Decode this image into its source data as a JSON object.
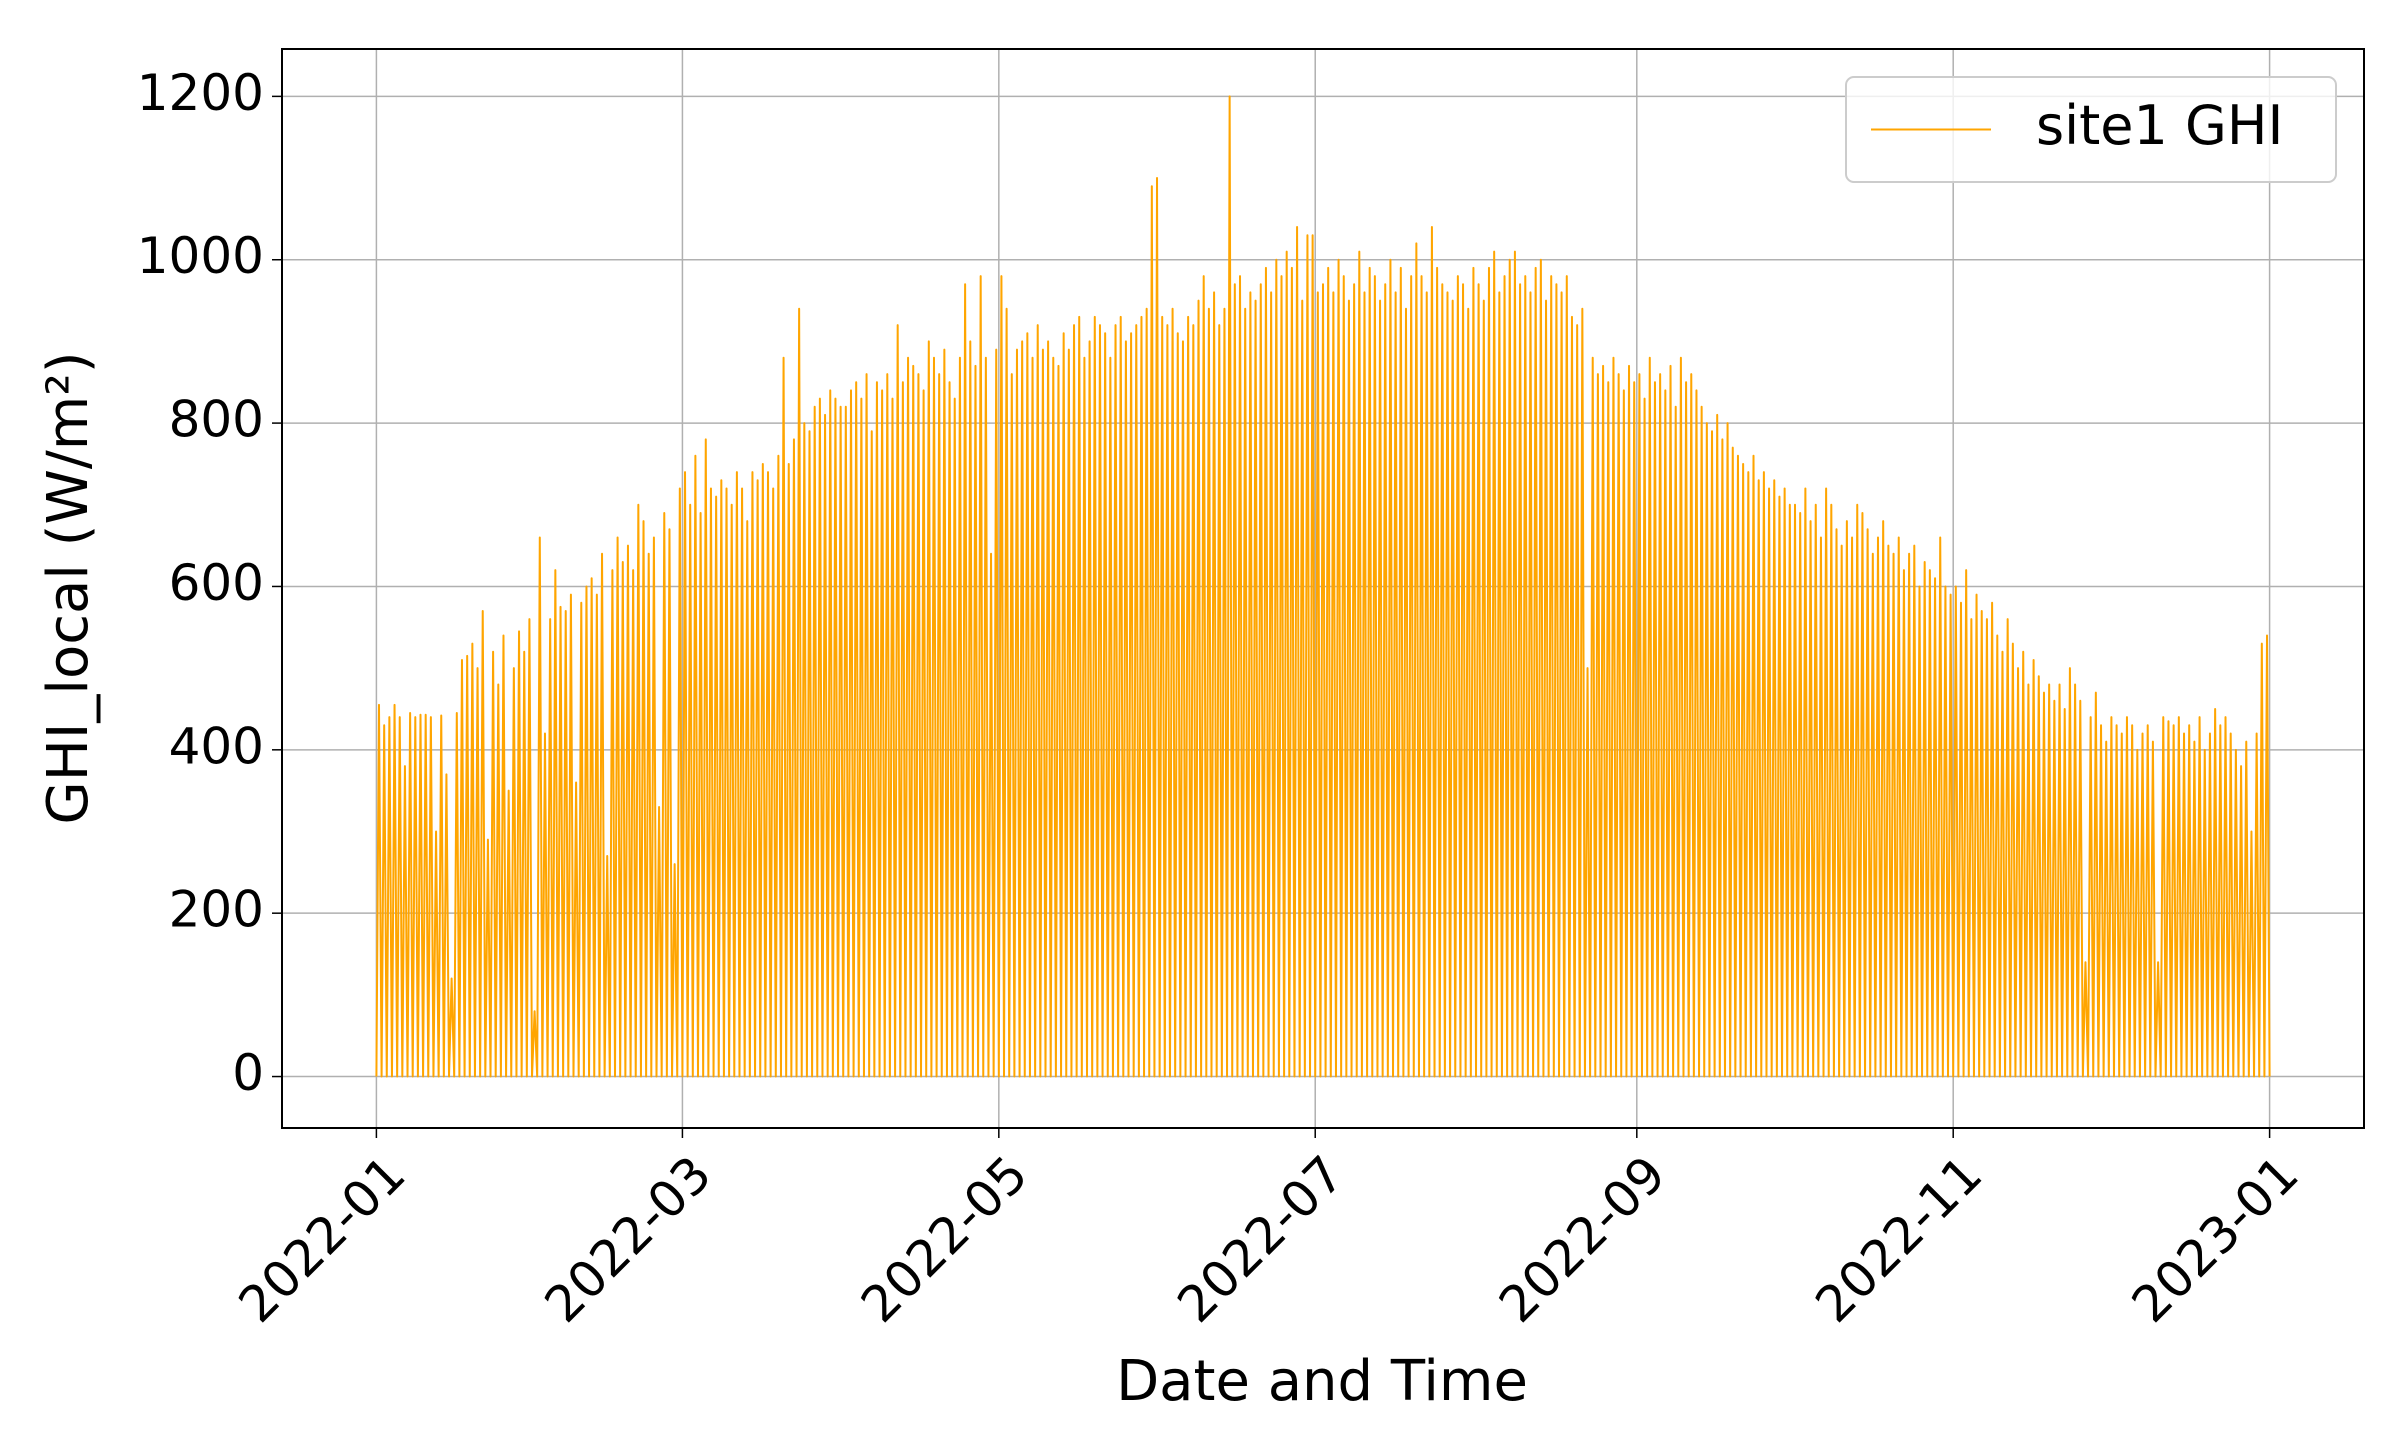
{
  "chart_data": {
    "type": "line",
    "xlabel": "Date and Time",
    "ylabel": "GHI_local (W/m²)",
    "xlim": [
      -18.2,
      383.2
    ],
    "ylim": [
      -63,
      1258
    ],
    "xticks": [
      {
        "value": 0,
        "label": "2022-01"
      },
      {
        "value": 59,
        "label": "2022-03"
      },
      {
        "value": 120,
        "label": "2022-05"
      },
      {
        "value": 181,
        "label": "2022-07"
      },
      {
        "value": 243,
        "label": "2022-09"
      },
      {
        "value": 304,
        "label": "2022-11"
      },
      {
        "value": 365,
        "label": "2023-01"
      }
    ],
    "yticks": [
      0,
      200,
      400,
      600,
      800,
      1000,
      1200
    ],
    "grid": true,
    "legend": "upper right",
    "x": [
      0,
      0.5,
      1,
      1.5,
      2,
      2.5,
      3,
      3.5,
      4,
      4.5,
      5,
      5.5,
      6,
      6.5,
      7,
      7.5,
      8,
      8.5,
      9,
      9.5,
      10,
      10.5,
      11,
      11.5,
      12,
      12.5,
      13,
      13.5,
      14,
      14.5,
      15,
      15.5,
      16,
      16.5,
      17,
      17.5,
      18,
      18.5,
      19,
      19.5,
      20,
      20.5,
      21,
      21.5,
      22,
      22.5,
      23,
      23.5,
      24,
      24.5,
      25,
      25.5,
      26,
      26.5,
      27,
      27.5,
      28,
      28.5,
      29,
      29.5,
      30,
      30.5,
      31,
      31.5,
      32,
      32.5,
      33,
      33.5,
      34,
      34.5,
      35,
      35.5,
      36,
      36.5,
      37,
      37.5,
      38,
      38.5,
      39,
      39.5,
      40,
      40.5,
      41,
      41.5,
      42,
      42.5,
      43,
      43.5,
      44,
      44.5,
      45,
      45.5,
      46,
      46.5,
      47,
      47.5,
      48,
      48.5,
      49,
      49.5,
      50,
      50.5,
      51,
      51.5,
      52,
      52.5,
      53,
      53.5,
      54,
      54.5,
      55,
      55.5,
      56,
      56.5,
      57,
      57.5,
      58,
      58.5,
      59,
      59.5,
      60,
      60.5,
      61,
      61.5,
      62,
      62.5,
      63,
      63.5,
      64,
      64.5,
      65,
      65.5,
      66,
      66.5,
      67,
      67.5,
      68,
      68.5,
      69,
      69.5,
      70,
      70.5,
      71,
      71.5,
      72,
      72.5,
      73,
      73.5,
      74,
      74.5,
      75,
      75.5,
      76,
      76.5,
      77,
      77.5,
      78,
      78.5,
      79,
      79.5,
      80,
      80.5,
      81,
      81.5,
      82,
      82.5,
      83,
      83.5,
      84,
      84.5,
      85,
      85.5,
      86,
      86.5,
      87,
      87.5,
      88,
      88.5,
      89,
      89.5,
      90,
      90.5,
      91,
      91.5,
      92,
      92.5,
      93,
      93.5,
      94,
      94.5,
      95,
      95.5,
      96,
      96.5,
      97,
      97.5,
      98,
      98.5,
      99,
      99.5,
      100,
      100.5,
      101,
      101.5,
      102,
      102.5,
      103,
      103.5,
      104,
      104.5,
      105,
      105.5,
      106,
      106.5,
      107,
      107.5,
      108,
      108.5,
      109,
      109.5,
      110,
      110.5,
      111,
      111.5,
      112,
      112.5,
      113,
      113.5,
      114,
      114.5,
      115,
      115.5,
      116,
      116.5,
      117,
      117.5,
      118,
      118.5,
      119,
      119.5,
      120,
      120.5,
      121,
      121.5,
      122,
      122.5,
      123,
      123.5,
      124,
      124.5,
      125,
      125.5,
      126,
      126.5,
      127,
      127.5,
      128,
      128.5,
      129,
      129.5,
      130,
      130.5,
      131,
      131.5,
      132,
      132.5,
      133,
      133.5,
      134,
      134.5,
      135,
      135.5,
      136,
      136.5,
      137,
      137.5,
      138,
      138.5,
      139,
      139.5,
      140,
      140.5,
      141,
      141.5,
      142,
      142.5,
      143,
      143.5,
      144,
      144.5,
      145,
      145.5,
      146,
      146.5,
      147,
      147.5,
      148,
      148.5,
      149,
      149.5,
      150,
      150.5,
      151,
      151.5,
      152,
      152.5,
      153,
      153.5,
      154,
      154.5,
      155,
      155.5,
      156,
      156.5,
      157,
      157.5,
      158,
      158.5,
      159,
      159.5,
      160,
      160.5,
      161,
      161.5,
      162,
      162.5,
      163,
      163.5,
      164,
      164.5,
      165,
      165.5,
      166,
      166.5,
      167,
      167.5,
      168,
      168.5,
      169,
      169.5,
      170,
      170.5,
      171,
      171.5,
      172,
      172.5,
      173,
      173.5,
      174,
      174.5,
      175,
      175.5,
      176,
      176.5,
      177,
      177.5,
      178,
      178.5,
      179,
      179.5,
      180,
      180.5,
      181,
      181.5,
      182,
      182.5,
      183,
      183.5,
      184,
      184.5,
      185,
      185.5,
      186,
      186.5,
      187,
      187.5,
      188,
      188.5,
      189,
      189.5,
      190,
      190.5,
      191,
      191.5,
      192,
      192.5,
      193,
      193.5,
      194,
      194.5,
      195,
      195.5,
      196,
      196.5,
      197,
      197.5,
      198,
      198.5,
      199,
      199.5,
      200,
      200.5,
      201,
      201.5,
      202,
      202.5,
      203,
      203.5,
      204,
      204.5,
      205,
      205.5,
      206,
      206.5,
      207,
      207.5,
      208,
      208.5,
      209,
      209.5,
      210,
      210.5,
      211,
      211.5,
      212,
      212.5,
      213,
      213.5,
      214,
      214.5,
      215,
      215.5,
      216,
      216.5,
      217,
      217.5,
      218,
      218.5,
      219,
      219.5,
      220,
      220.5,
      221,
      221.5,
      222,
      222.5,
      223,
      223.5,
      224,
      224.5,
      225,
      225.5,
      226,
      226.5,
      227,
      227.5,
      228,
      228.5,
      229,
      229.5,
      230,
      230.5,
      231,
      231.5,
      232,
      232.5,
      233,
      233.5,
      234,
      234.5,
      235,
      235.5,
      236,
      236.5,
      237,
      237.5,
      238,
      238.5,
      239,
      239.5,
      240,
      240.5,
      241,
      241.5,
      242,
      242.5,
      243,
      243.5,
      244,
      244.5,
      245,
      245.5,
      246,
      246.5,
      247,
      247.5,
      248,
      248.5,
      249,
      249.5,
      250,
      250.5,
      251,
      251.5,
      252,
      252.5,
      253,
      253.5,
      254,
      254.5,
      255,
      255.5,
      256,
      256.5,
      257,
      257.5,
      258,
      258.5,
      259,
      259.5,
      260,
      260.5,
      261,
      261.5,
      262,
      262.5,
      263,
      263.5,
      264,
      264.5,
      265,
      265.5,
      266,
      266.5,
      267,
      267.5,
      268,
      268.5,
      269,
      269.5,
      270,
      270.5,
      271,
      271.5,
      272,
      272.5,
      273,
      273.5,
      274,
      274.5,
      275,
      275.5,
      276,
      276.5,
      277,
      277.5,
      278,
      278.5,
      279,
      279.5,
      280,
      280.5,
      281,
      281.5,
      282,
      282.5,
      283,
      283.5,
      284,
      284.5,
      285,
      285.5,
      286,
      286.5,
      287,
      287.5,
      288,
      288.5,
      289,
      289.5,
      290,
      290.5,
      291,
      291.5,
      292,
      292.5,
      293,
      293.5,
      294,
      294.5,
      295,
      295.5,
      296,
      296.5,
      297,
      297.5,
      298,
      298.5,
      299,
      299.5,
      300,
      300.5,
      301,
      301.5,
      302,
      302.5,
      303,
      303.5,
      304,
      304.5,
      305,
      305.5,
      306,
      306.5,
      307,
      307.5,
      308,
      308.5,
      309,
      309.5,
      310,
      310.5,
      311,
      311.5,
      312,
      312.5,
      313,
      313.5,
      314,
      314.5,
      315,
      315.5,
      316,
      316.5,
      317,
      317.5,
      318,
      318.5,
      319,
      319.5,
      320,
      320.5,
      321,
      321.5,
      322,
      322.5,
      323,
      323.5,
      324,
      324.5,
      325,
      325.5,
      326,
      326.5,
      327,
      327.5,
      328,
      328.5,
      329,
      329.5,
      330,
      330.5,
      331,
      331.5,
      332,
      332.5,
      333,
      333.5,
      334,
      334.5,
      335,
      335.5,
      336,
      336.5,
      337,
      337.5,
      338,
      338.5,
      339,
      339.5,
      340,
      340.5,
      341,
      341.5,
      342,
      342.5,
      343,
      343.5,
      344,
      344.5,
      345,
      345.5,
      346,
      346.5,
      347,
      347.5,
      348,
      348.5,
      349,
      349.5,
      350,
      350.5,
      351,
      351.5,
      352,
      352.5,
      353,
      353.5,
      354,
      354.5,
      355,
      355.5,
      356,
      356.5,
      357,
      357.5,
      358,
      358.5,
      359,
      359.5,
      360,
      360.5,
      361,
      361.5,
      362,
      362.5,
      363,
      363.5,
      364,
      364.5,
      365
    ],
    "series": [
      {
        "name": "site1 GHI",
        "color": "#FFA500",
        "values": [
          0,
          455,
          0,
          430,
          0,
          440,
          0,
          455,
          0,
          440,
          0,
          380,
          0,
          445,
          0,
          440,
          0,
          443,
          0,
          443,
          0,
          440,
          0,
          300,
          0,
          442,
          0,
          370,
          0,
          120,
          0,
          445,
          0,
          510,
          0,
          515,
          0,
          530,
          0,
          500,
          0,
          570,
          0,
          290,
          0,
          520,
          0,
          480,
          0,
          540,
          0,
          350,
          0,
          500,
          0,
          545,
          0,
          520,
          0,
          560,
          0,
          80,
          0,
          660,
          0,
          420,
          0,
          560,
          0,
          620,
          0,
          575,
          0,
          570,
          0,
          590,
          0,
          360,
          0,
          580,
          0,
          600,
          0,
          610,
          0,
          590,
          0,
          640,
          0,
          270,
          0,
          620,
          0,
          660,
          0,
          630,
          0,
          650,
          0,
          620,
          0,
          700,
          0,
          680,
          0,
          640,
          0,
          660,
          0,
          330,
          0,
          690,
          0,
          670,
          0,
          260,
          0,
          720,
          0,
          740,
          0,
          700,
          0,
          760,
          0,
          690,
          0,
          780,
          0,
          720,
          0,
          710,
          0,
          730,
          0,
          720,
          0,
          700,
          0,
          740,
          0,
          720,
          0,
          680,
          0,
          740,
          0,
          730,
          0,
          750,
          0,
          740,
          0,
          720,
          0,
          760,
          0,
          880,
          0,
          750,
          0,
          780,
          0,
          940,
          0,
          800,
          0,
          790,
          0,
          820,
          0,
          830,
          0,
          810,
          0,
          840,
          0,
          830,
          0,
          820,
          0,
          820,
          0,
          840,
          0,
          850,
          0,
          830,
          0,
          860,
          0,
          790,
          0,
          850,
          0,
          840,
          0,
          860,
          0,
          830,
          0,
          920,
          0,
          850,
          0,
          880,
          0,
          870,
          0,
          860,
          0,
          840,
          0,
          900,
          0,
          880,
          0,
          860,
          0,
          890,
          0,
          850,
          0,
          830,
          0,
          880,
          0,
          970,
          0,
          900,
          0,
          870,
          0,
          980,
          0,
          880,
          0,
          640,
          0,
          890,
          0,
          980,
          0,
          940,
          0,
          860,
          0,
          890,
          0,
          900,
          0,
          910,
          0,
          880,
          0,
          920,
          0,
          890,
          0,
          900,
          0,
          880,
          0,
          870,
          0,
          910,
          0,
          890,
          0,
          920,
          0,
          930,
          0,
          880,
          0,
          900,
          0,
          930,
          0,
          920,
          0,
          910,
          0,
          880,
          0,
          920,
          0,
          930,
          0,
          900,
          0,
          910,
          0,
          920,
          0,
          930,
          0,
          940,
          0,
          1090,
          0,
          1100,
          0,
          930,
          0,
          920,
          0,
          940,
          0,
          910,
          0,
          900,
          0,
          930,
          0,
          920,
          0,
          950,
          0,
          980,
          0,
          940,
          0,
          960,
          0,
          920,
          0,
          940,
          0,
          1200,
          0,
          970,
          0,
          980,
          0,
          940,
          0,
          960,
          0,
          950,
          0,
          970,
          0,
          990,
          0,
          960,
          0,
          1000,
          0,
          980,
          0,
          1010,
          0,
          990,
          0,
          1040,
          0,
          950,
          0,
          1030,
          0,
          1030,
          0,
          960,
          0,
          970,
          0,
          990,
          0,
          960,
          0,
          1000,
          0,
          980,
          0,
          950,
          0,
          970,
          0,
          1010,
          0,
          960,
          0,
          990,
          0,
          980,
          0,
          950,
          0,
          970,
          0,
          1000,
          0,
          960,
          0,
          990,
          0,
          940,
          0,
          980,
          0,
          1020,
          0,
          980,
          0,
          960,
          0,
          1040,
          0,
          990,
          0,
          970,
          0,
          960,
          0,
          950,
          0,
          980,
          0,
          970,
          0,
          940,
          0,
          990,
          0,
          970,
          0,
          950,
          0,
          990,
          0,
          1010,
          0,
          960,
          0,
          980,
          0,
          1000,
          0,
          1010,
          0,
          970,
          0,
          980,
          0,
          960,
          0,
          990,
          0,
          1000,
          0,
          950,
          0,
          980,
          0,
          970,
          0,
          960,
          0,
          980,
          0,
          930,
          0,
          920,
          0,
          940,
          0,
          500,
          0,
          880,
          0,
          860,
          0,
          870,
          0,
          850,
          0,
          880,
          0,
          860,
          0,
          840,
          0,
          870,
          0,
          850,
          0,
          860,
          0,
          830,
          0,
          880,
          0,
          850,
          0,
          860,
          0,
          840,
          0,
          870,
          0,
          820,
          0,
          880,
          0,
          850,
          0,
          860,
          0,
          840,
          0,
          820,
          0,
          800,
          0,
          790,
          0,
          810,
          0,
          780,
          0,
          800,
          0,
          770,
          0,
          760,
          0,
          750,
          0,
          740,
          0,
          760,
          0,
          730,
          0,
          740,
          0,
          720,
          0,
          730,
          0,
          710,
          0,
          720,
          0,
          700,
          0,
          700,
          0,
          690,
          0,
          720,
          0,
          680,
          0,
          700,
          0,
          660,
          0,
          720,
          0,
          700,
          0,
          670,
          0,
          650,
          0,
          680,
          0,
          660,
          0,
          700,
          0,
          690,
          0,
          670,
          0,
          640,
          0,
          660,
          0,
          680,
          0,
          650,
          0,
          640,
          0,
          660,
          0,
          620,
          0,
          640,
          0,
          650,
          0,
          600,
          0,
          630,
          0,
          620,
          0,
          610,
          0,
          660,
          0,
          600,
          0,
          590,
          0,
          600,
          0,
          580,
          0,
          620,
          0,
          560,
          0,
          590,
          0,
          570,
          0,
          560,
          0,
          580,
          0,
          540,
          0,
          520,
          0,
          560,
          0,
          530,
          0,
          500,
          0,
          520,
          0,
          480,
          0,
          510,
          0,
          490,
          0,
          470,
          0,
          480,
          0,
          460,
          0,
          480,
          0,
          450,
          0,
          500,
          0,
          480,
          0,
          460,
          0,
          140,
          0,
          440,
          0,
          470,
          0,
          430,
          0,
          410,
          0,
          440,
          0,
          430,
          0,
          420,
          0,
          440,
          0,
          430,
          0,
          400,
          0,
          420,
          0,
          430,
          0,
          410,
          0,
          140,
          0,
          440,
          0,
          435,
          0,
          430,
          0,
          440,
          0,
          420,
          0,
          430,
          0,
          410,
          0,
          440,
          0,
          400,
          0,
          420,
          0,
          450,
          0,
          430,
          0,
          440,
          0,
          420,
          0,
          400,
          0,
          380,
          0,
          410,
          0,
          300,
          0,
          420,
          0,
          530,
          0,
          540,
          0
        ]
      }
    ]
  }
}
